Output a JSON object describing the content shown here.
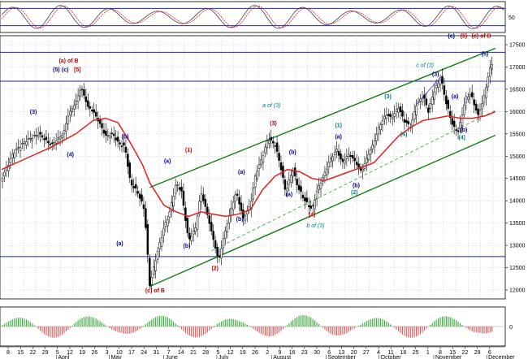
{
  "chart_data": {
    "type": "candlestick",
    "title": "",
    "price_axis": {
      "min": 11800,
      "max": 17700,
      "ticks": [
        12000,
        12500,
        13000,
        13500,
        14000,
        14500,
        15000,
        15500,
        16000,
        16500,
        17000,
        17500
      ]
    },
    "oscillator_axis": {
      "min": 0,
      "max": 100,
      "ticks": [
        50
      ]
    },
    "volume_axis": {
      "ticks": [
        0
      ]
    },
    "months": [
      "April",
      "May",
      "June",
      "July",
      "August",
      "September",
      "October",
      "November",
      "December"
    ],
    "day_ticks": [
      "8",
      "15",
      "22",
      "29",
      "5",
      "12",
      "19",
      "26",
      "3",
      "10",
      "17",
      "24",
      "31",
      "7",
      "14",
      "21",
      "28",
      "5",
      "12",
      "19",
      "26",
      "2",
      "9",
      "16",
      "23",
      "30",
      "6",
      "13",
      "20",
      "27",
      "4",
      "11",
      "18",
      "25",
      "1",
      "8",
      "15",
      "22",
      "29",
      "6"
    ],
    "horizontal_levels": [
      12750,
      16680,
      17330
    ],
    "channel": {
      "upper": [
        [
          "May 24",
          14300
        ],
        [
          "Dec 6",
          17420
        ]
      ],
      "lower": [
        [
          "May 24",
          12080
        ],
        [
          "Dec 6",
          15470
        ]
      ],
      "mid_dashed": [
        [
          "Jun 28",
          12880
        ],
        [
          "Dec 6",
          16030
        ]
      ]
    },
    "price_path": [
      [
        "Mar 1",
        14500
      ],
      [
        "Mar 8",
        15100
      ],
      [
        "Mar 15",
        15350
      ],
      [
        "Mar 22",
        15500
      ],
      [
        "Mar 29",
        15250
      ],
      [
        "Apr 5",
        15500
      ],
      [
        "Apr 8",
        15950
      ],
      [
        "Apr 12",
        16200
      ],
      [
        "Apr 15",
        16550
      ],
      [
        "Apr 19",
        16100
      ],
      [
        "Apr 22",
        16000
      ],
      [
        "Apr 26",
        15700
      ],
      [
        "Apr 29",
        15450
      ],
      [
        "May 3",
        15500
      ],
      [
        "May 6",
        15300
      ],
      [
        "May 10",
        15200
      ],
      [
        "May 13",
        14400
      ],
      [
        "May 17",
        14200
      ],
      [
        "May 21",
        13800
      ],
      [
        "May 24",
        12100
      ],
      [
        "May 28",
        12800
      ],
      [
        "Jun 1",
        13400
      ],
      [
        "Jun 4",
        13700
      ],
      [
        "Jun 8",
        14400
      ],
      [
        "Jun 11",
        14200
      ],
      [
        "Jun 15",
        13100
      ],
      [
        "Jun 19",
        13400
      ],
      [
        "Jun 22",
        14200
      ],
      [
        "Jun 25",
        13800
      ],
      [
        "Jun 28",
        13300
      ],
      [
        "Jul 2",
        12650
      ],
      [
        "Jul 5",
        13200
      ],
      [
        "Jul 9",
        13800
      ],
      [
        "Jul 12",
        14200
      ],
      [
        "Jul 16",
        13600
      ],
      [
        "Jul 20",
        13900
      ],
      [
        "Jul 23",
        14600
      ],
      [
        "Jul 27",
        15000
      ],
      [
        "Jul 30",
        15400
      ],
      [
        "Aug 3",
        15250
      ],
      [
        "Aug 6",
        14800
      ],
      [
        "Aug 9",
        14200
      ],
      [
        "Aug 13",
        14700
      ],
      [
        "Aug 16",
        14300
      ],
      [
        "Aug 20",
        14000
      ],
      [
        "Aug 24",
        13800
      ],
      [
        "Aug 27",
        14250
      ],
      [
        "Aug 31",
        14600
      ],
      [
        "Sep 3",
        14900
      ],
      [
        "Sep 7",
        15150
      ],
      [
        "Sep 10",
        14850
      ],
      [
        "Sep 14",
        15050
      ],
      [
        "Sep 17",
        14900
      ],
      [
        "Sep 21",
        14650
      ],
      [
        "Sep 24",
        14950
      ],
      [
        "Sep 28",
        15300
      ],
      [
        "Oct 1",
        15650
      ],
      [
        "Oct 5",
        15950
      ],
      [
        "Oct 8",
        15850
      ],
      [
        "Oct 12",
        16100
      ],
      [
        "Oct 15",
        15800
      ],
      [
        "Oct 19",
        15650
      ],
      [
        "Oct 22",
        16150
      ],
      [
        "Oct 26",
        16350
      ],
      [
        "Oct 29",
        16000
      ],
      [
        "Nov 1",
        16450
      ],
      [
        "Nov 5",
        16750
      ],
      [
        "Nov 8",
        16200
      ],
      [
        "Nov 12",
        15650
      ],
      [
        "Nov 15",
        15550
      ],
      [
        "Nov 19",
        16300
      ],
      [
        "Nov 22",
        16400
      ],
      [
        "Nov 26",
        15900
      ],
      [
        "Nov 29",
        16250
      ],
      [
        "Dec 3",
        17000
      ],
      [
        "Dec 6",
        17200
      ]
    ],
    "moving_average": [
      [
        "Mar 1",
        14700
      ],
      [
        "Mar 15",
        14950
      ],
      [
        "Mar 29",
        15200
      ],
      [
        "Apr 12",
        15500
      ],
      [
        "Apr 22",
        15800
      ],
      [
        "Apr 29",
        15850
      ],
      [
        "May 6",
        15750
      ],
      [
        "May 13",
        15300
      ],
      [
        "May 20",
        14800
      ],
      [
        "May 24",
        14400
      ],
      [
        "Jun 1",
        13900
      ],
      [
        "Jun 8",
        13750
      ],
      [
        "Jun 15",
        13650
      ],
      [
        "Jun 22",
        13750
      ],
      [
        "Jun 29",
        13700
      ],
      [
        "Jul 6",
        13650
      ],
      [
        "Jul 13",
        13700
      ],
      [
        "Jul 20",
        13800
      ],
      [
        "Jul 27",
        14250
      ],
      [
        "Aug 3",
        14550
      ],
      [
        "Aug 10",
        14700
      ],
      [
        "Aug 17",
        14650
      ],
      [
        "Aug 24",
        14500
      ],
      [
        "Aug 31",
        14450
      ],
      [
        "Sep 7",
        14550
      ],
      [
        "Sep 14",
        14650
      ],
      [
        "Sep 21",
        14750
      ],
      [
        "Sep 28",
        14850
      ],
      [
        "Oct 5",
        15150
      ],
      [
        "Oct 12",
        15450
      ],
      [
        "Oct 19",
        15650
      ],
      [
        "Oct 26",
        15800
      ],
      [
        "Nov 2",
        15850
      ],
      [
        "Nov 9",
        15900
      ],
      [
        "Nov 16",
        15850
      ],
      [
        "Nov 23",
        15850
      ],
      [
        "Nov 30",
        15900
      ],
      [
        "Dec 6",
        16000
      ]
    ],
    "annotations": [
      {
        "text": "(a) of B",
        "date": "Apr 8",
        "price": 17100,
        "color": "#c00000"
      },
      {
        "text": "(5)",
        "date": "Apr 1",
        "price": 16900,
        "color": "#000090"
      },
      {
        "text": "(c)",
        "date": "Apr 6",
        "price": 16900,
        "color": "#000090"
      },
      {
        "text": "[5]",
        "date": "Apr 13",
        "price": 16900,
        "color": "#c00000"
      },
      {
        "text": "(3)",
        "date": "Mar 19",
        "price": 15950,
        "color": "#000090"
      },
      {
        "text": "(4)",
        "date": "Apr 9",
        "price": 15000,
        "color": "#000090"
      },
      {
        "text": "(b)",
        "date": "May 10",
        "price": 15400,
        "color": "#000090"
      },
      {
        "text": "(a)",
        "date": "May 7",
        "price": 13000,
        "color": "#000090"
      },
      {
        "text": "(c) of B",
        "date": "May 27",
        "price": 11950,
        "color": "#c00000"
      },
      {
        "text": "(a)",
        "date": "Jun 3",
        "price": 14850,
        "color": "#000090"
      },
      {
        "text": "(1)",
        "date": "Jun 15",
        "price": 15100,
        "color": "#c00000"
      },
      {
        "text": "(b)",
        "date": "Jun 14",
        "price": 12950,
        "color": "#000090"
      },
      {
        "text": "(2)",
        "date": "Jun 30",
        "price": 12450,
        "color": "#c00000"
      },
      {
        "text": "(a)",
        "date": "Jul 15",
        "price": 14600,
        "color": "#000090"
      },
      {
        "text": "(b)",
        "date": "Jul 14",
        "price": 13550,
        "color": "#000090"
      },
      {
        "text": "a of (3)",
        "date": "Aug 1",
        "price": 16100,
        "color": "#008080"
      },
      {
        "text": "(3)",
        "date": "Aug 2",
        "price": 15700,
        "color": "#c00000"
      },
      {
        "text": "(b)",
        "date": "Aug 13",
        "price": 15050,
        "color": "#000090"
      },
      {
        "text": "(a)",
        "date": "Aug 11",
        "price": 14100,
        "color": "#000090"
      },
      {
        "text": "(4)",
        "date": "Aug 24",
        "price": 13650,
        "color": "#c00000"
      },
      {
        "text": "b of (3)",
        "date": "Aug 26",
        "price": 13400,
        "color": "#008080"
      },
      {
        "text": "(a)",
        "date": "Sep 8",
        "price": 15400,
        "color": "#000090"
      },
      {
        "text": "(1)",
        "date": "Sep 8",
        "price": 15650,
        "color": "#008080"
      },
      {
        "text": "(b)",
        "date": "Sep 18",
        "price": 14300,
        "color": "#000090"
      },
      {
        "text": "(2)",
        "date": "Sep 17",
        "price": 14150,
        "color": "#008080"
      },
      {
        "text": "(3)",
        "date": "Oct 6",
        "price": 16300,
        "color": "#008080"
      },
      {
        "text": "c of (3)",
        "date": "Oct 27",
        "price": 17000,
        "color": "#008080"
      },
      {
        "text": "(4)",
        "date": "Oct 15",
        "price": 15450,
        "color": "#008080"
      },
      {
        "text": "(3)",
        "date": "Nov 2",
        "price": 16800,
        "color": "#000090"
      },
      {
        "text": "(a)",
        "date": "Nov 13",
        "price": 16300,
        "color": "#000090"
      },
      {
        "text": "(b)",
        "date": "Nov 18",
        "price": 15550,
        "color": "#000090"
      },
      {
        "text": "(4)",
        "date": "Nov 17",
        "price": 15380,
        "color": "#008080"
      },
      {
        "text": "(5)",
        "date": "Nov 30",
        "price": 17250,
        "color": "#000090"
      },
      {
        "text": "(c)",
        "date": "Nov 11",
        "price": 17650,
        "color": "#000090"
      },
      {
        "text": "(5)",
        "date": "Nov 18",
        "price": 17650,
        "color": "#c00000"
      },
      {
        "text": "(c) of B",
        "date": "Nov 28",
        "price": 17650,
        "color": "#c00000"
      }
    ]
  }
}
